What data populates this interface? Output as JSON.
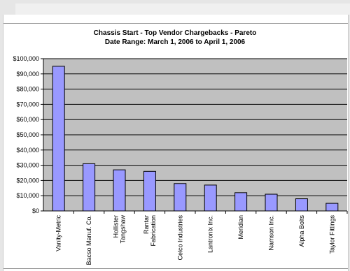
{
  "chart_data": {
    "type": "bar",
    "title": "Chassis Start - Top Vendor Chargebacks - Pareto",
    "subtitle": "Date Range: March 1, 2006 to April 1, 2006",
    "categories": [
      "Vanity-Metric",
      "Bacso Manuf. Co.",
      "Hollister Tangshaw",
      "Rantar Fabrication",
      "Celco Industries",
      "Lantronix Inc.",
      "Meridian",
      "Namson Inc.",
      "Alpha Bolts",
      "Taylor Fittings"
    ],
    "category_lines": [
      [
        "Vanity-Metric"
      ],
      [
        "Bacso Manuf. Co."
      ],
      [
        "Hollister",
        "Tangshaw"
      ],
      [
        "Rantar",
        "Fabrication"
      ],
      [
        "Celco Industries"
      ],
      [
        "Lantronix Inc."
      ],
      [
        "Meridian"
      ],
      [
        "Namson Inc."
      ],
      [
        "Alpha Bolts"
      ],
      [
        "Taylor Fittings"
      ]
    ],
    "values": [
      95000,
      31000,
      27000,
      26000,
      18000,
      17000,
      12000,
      11000,
      8000,
      5000
    ],
    "ylim": [
      0,
      100000
    ],
    "yticks": [
      0,
      10000,
      20000,
      30000,
      40000,
      50000,
      60000,
      70000,
      80000,
      90000,
      100000
    ],
    "ytick_labels": [
      "$0",
      "$10,000",
      "$20,000",
      "$30,000",
      "$40,000",
      "$50,000",
      "$60,000",
      "$70,000",
      "$80,000",
      "$90,000",
      "$100,000"
    ],
    "grid": true,
    "colors": {
      "bar": "#9999ff",
      "plot_bg": "#c0c0c0",
      "grid": "#000000"
    }
  }
}
